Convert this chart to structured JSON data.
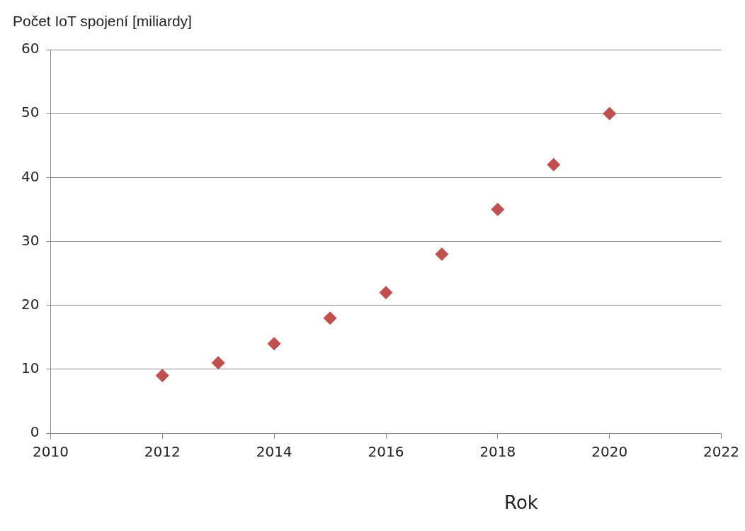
{
  "chart_data": {
    "type": "scatter",
    "ylabel": "Počet IoT spojení [miliardy]",
    "xlabel": "Rok",
    "x": [
      2012,
      2013,
      2014,
      2015,
      2016,
      2017,
      2018,
      2019,
      2020
    ],
    "values": [
      9,
      11,
      14,
      18,
      22,
      28,
      35,
      42,
      50
    ],
    "color": "#c0504d",
    "marker": "diamond",
    "xlim": [
      2010,
      2022
    ],
    "xticks": [
      2010,
      2012,
      2014,
      2016,
      2018,
      2020,
      2022
    ],
    "ylim": [
      0,
      60
    ],
    "yticks": [
      0,
      10,
      20,
      30,
      40,
      50,
      60
    ],
    "grid": "y",
    "legend": false
  }
}
